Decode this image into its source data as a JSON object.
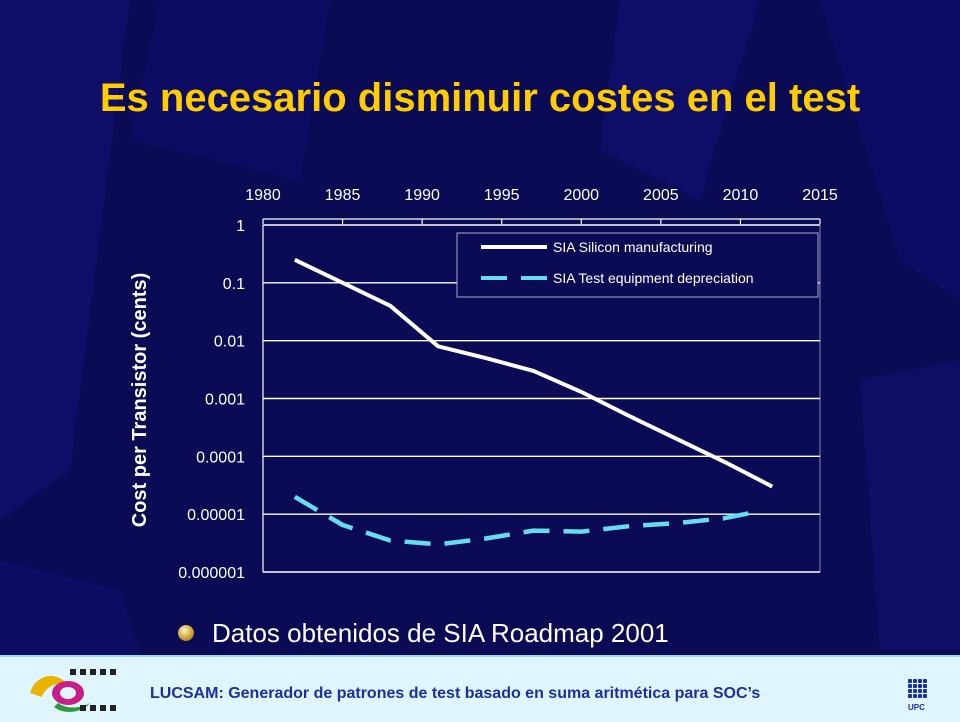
{
  "slide": {
    "title": "Es necesario disminuir costes en el test",
    "bullet": "Datos obtenidos de SIA Roadmap 2001",
    "footer": "LUCSAM: Generador de patrones de test basado en suma aritmética para SOC’s",
    "logo_right_text": "UPC"
  },
  "colors": {
    "background": "#0a0a55",
    "title": "#ffcc00",
    "silicon_series": "#ffffff",
    "test_series": "#66ddee",
    "footer_bg": "#dff5ff",
    "footer_text": "#1a2fa0"
  },
  "chart_data": {
    "type": "line",
    "title": "",
    "xlabel": "",
    "ylabel": "Cost per Transistor (cents)",
    "x_axis_position": "top",
    "x_ticks": [
      "1980",
      "1985",
      "1990",
      "1995",
      "2000",
      "2005",
      "2010",
      "2015"
    ],
    "xlim": [
      1980,
      2015
    ],
    "y_scale": "log",
    "y_ticks": [
      "1",
      "0.1",
      "0.01",
      "0.001",
      "0.0001",
      "0.00001",
      "0.000001"
    ],
    "ylim": [
      1e-06,
      1
    ],
    "grid": "horizontal",
    "legend_placement": "top-right",
    "series": [
      {
        "name": "SIA Silicon manufacturing",
        "style": "solid",
        "x": [
          1982,
          1985,
          1988,
          1991,
          1994,
          1997,
          2000,
          2003,
          2006,
          2009,
          2012
        ],
        "y": [
          0.25,
          0.1,
          0.04,
          0.008,
          0.005,
          0.003,
          0.0013,
          0.0005,
          0.0002,
          8e-05,
          3e-05
        ]
      },
      {
        "name": "SIA Test equipment depreciation",
        "style": "dashed",
        "x": [
          1982,
          1985,
          1988,
          1991,
          1994,
          1997,
          2000,
          2003,
          2006,
          2009,
          2011
        ],
        "y": [
          2e-05,
          6.5e-06,
          3.5e-06,
          3e-06,
          3.8e-06,
          5.2e-06,
          5e-06,
          6.2e-06,
          7e-06,
          8.5e-06,
          1.1e-05
        ]
      }
    ]
  }
}
